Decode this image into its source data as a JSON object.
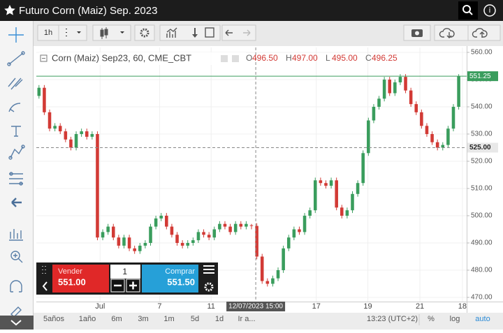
{
  "header": {
    "title": "Futuro Corn (Maiz) Sep. 2023"
  },
  "toolbar": {
    "interval": "1h"
  },
  "chart_data": {
    "type": "candlestick",
    "legend": "Corn (Maiz) Sep23, 60, CME_CBT",
    "ohlc_legend": [
      {
        "key": "O",
        "text": "496.50"
      },
      {
        "key": "H",
        "text": "497.00"
      },
      {
        "key": "L",
        "text": "495.00"
      },
      {
        "key": "C",
        "text": "496.25"
      }
    ],
    "up_color": "#3a9d5d",
    "down_color": "#d23a35",
    "open": [
      544,
      547,
      538,
      532,
      533,
      531,
      528,
      525,
      530,
      531,
      529,
      530,
      492,
      494,
      496,
      492,
      489,
      492,
      488,
      487,
      489,
      490,
      496,
      499,
      500,
      496,
      493,
      490,
      489,
      490,
      491,
      494,
      493,
      492,
      495,
      497,
      496,
      494,
      497,
      496,
      496.5,
      496.25,
      485,
      476,
      475,
      477,
      480,
      488,
      492,
      495,
      494,
      500,
      502,
      513,
      512,
      511,
      513,
      503,
      500,
      502,
      508,
      512,
      523,
      535,
      540,
      543,
      550,
      545,
      549,
      551,
      546,
      541,
      538,
      533,
      530,
      527,
      525,
      526,
      532,
      540
    ],
    "high": [
      548,
      548,
      539,
      534,
      534,
      532,
      529,
      531,
      532,
      532,
      531,
      531,
      495,
      497,
      497,
      493,
      493,
      493,
      489,
      490,
      491,
      497,
      500,
      501,
      501,
      497,
      494,
      491,
      491,
      492,
      495,
      495,
      494,
      496,
      498,
      498,
      497,
      498,
      498,
      498,
      497,
      497.25,
      486,
      477,
      478,
      481,
      489,
      493,
      496,
      496,
      501,
      503,
      514,
      514,
      513,
      514,
      514,
      504,
      503,
      509,
      513,
      524,
      536,
      541,
      544,
      551,
      551,
      550,
      552,
      552,
      547,
      542,
      539,
      534,
      531,
      528,
      527,
      533,
      541,
      552
    ],
    "low": [
      543,
      537,
      531,
      531,
      530,
      527,
      524,
      524,
      529,
      528,
      528,
      491,
      491,
      493,
      491,
      488,
      488,
      487,
      486,
      486,
      488,
      489,
      495,
      498,
      495,
      492,
      489,
      488,
      488,
      489,
      490,
      492,
      491,
      491,
      494,
      495,
      493,
      493,
      495,
      495,
      495,
      484,
      475,
      474,
      474,
      476,
      479,
      487,
      491,
      493,
      493,
      499,
      501,
      511,
      510,
      510,
      502,
      499,
      499,
      501,
      507,
      511,
      522,
      534,
      539,
      542,
      544,
      544,
      548,
      545,
      540,
      537,
      532,
      529,
      526,
      524,
      524,
      525,
      531,
      539
    ],
    "close": [
      547,
      538,
      532,
      533,
      531,
      528,
      525,
      530,
      531,
      529,
      530,
      492,
      494,
      496,
      492,
      489,
      492,
      488,
      487,
      489,
      490,
      496,
      499,
      500,
      496,
      493,
      490,
      489,
      490,
      491,
      494,
      493,
      492,
      495,
      497,
      496,
      494,
      497,
      496,
      497,
      496.25,
      485,
      476,
      475,
      477,
      480,
      488,
      492,
      495,
      494,
      500,
      502,
      513,
      512,
      511,
      513,
      503,
      500,
      502,
      508,
      512,
      523,
      535,
      540,
      543,
      550,
      545,
      549,
      551,
      546,
      541,
      538,
      533,
      530,
      527,
      525,
      526,
      532,
      540,
      551.25
    ],
    "xlim": [
      -0.5,
      80.5
    ],
    "xticks": [
      {
        "value": 11.5,
        "label": "Jul"
      },
      {
        "value": 22.7,
        "label": "7"
      },
      {
        "value": 32.4,
        "label": "11"
      },
      {
        "value": 52.2,
        "label": "17"
      },
      {
        "value": 61.9,
        "label": "19"
      },
      {
        "value": 71.7,
        "label": "21"
      },
      {
        "value": 79.7,
        "label": "18"
      }
    ],
    "ylim": [
      468.46,
      561.8
    ],
    "yticks": [
      {
        "value": 470,
        "label": "470.00"
      },
      {
        "value": 480,
        "label": "480.00"
      },
      {
        "value": 490,
        "label": "490.00"
      },
      {
        "value": 500,
        "label": "500.00"
      },
      {
        "value": 510,
        "label": "510.00"
      },
      {
        "value": 520,
        "label": "520.00"
      },
      {
        "value": 530,
        "label": "530.00"
      },
      {
        "value": 540,
        "label": "540.00"
      },
      {
        "value": 550,
        "label": "550.00"
      },
      {
        "value": 560,
        "label": "560.00"
      }
    ],
    "grid": true,
    "last_price": {
      "value": 551.25,
      "label": "551.25",
      "color": "#3a9d5d"
    },
    "crosshair": {
      "price": {
        "value": 525,
        "label": "525.00"
      },
      "time": {
        "value": 40.8,
        "label": "12/07/2023 15:00"
      }
    }
  },
  "trade_panel": {
    "sell": {
      "label": "Vender",
      "price": "551.00"
    },
    "quantity": "1",
    "buy": {
      "label": "Comprar",
      "price": "551.50"
    }
  },
  "footer": {
    "ranges": [
      "5años",
      "1año",
      "6m",
      "3m",
      "1m",
      "5d",
      "1d",
      "Ir a..."
    ],
    "time": "13:23 (UTC+2)",
    "percent": "%",
    "log": "log",
    "auto": "auto"
  }
}
